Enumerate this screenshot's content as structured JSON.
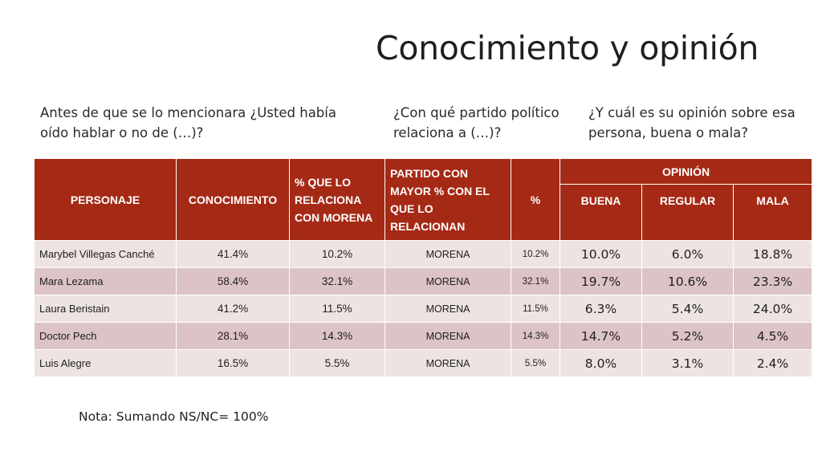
{
  "title": "Conocimiento y opinión",
  "questions": {
    "q1": "Antes de que se lo mencionara ¿Usted había oído hablar o no de (…)?",
    "q2": "¿Con qué partido político relaciona a (…)?",
    "q3": "¿Y cuál es su opinión sobre esa persona, buena o mala?"
  },
  "table": {
    "headers": {
      "personaje": "PERSONAJE",
      "conocimiento": "CONOCIMIENTO",
      "relaciona_morena": "% QUE LO RELACIONA CON MORENA",
      "partido": "PARTIDO CON MAYOR % CON EL QUE LO RELACIONAN",
      "pct": "%",
      "opinion": "OPINIÓN",
      "buena": "BUENA",
      "regular": "REGULAR",
      "mala": "MALA"
    },
    "rows": [
      {
        "personaje": "Marybel Villegas Canché",
        "conocimiento": "41.4%",
        "relaciona": "10.2%",
        "partido": "MORENA",
        "pct": "10.2%",
        "buena": "10.0%",
        "regular": "6.0%",
        "mala": "18.8%"
      },
      {
        "personaje": "Mara Lezama",
        "conocimiento": "58.4%",
        "relaciona": "32.1%",
        "partido": "MORENA",
        "pct": "32.1%",
        "buena": "19.7%",
        "regular": "10.6%",
        "mala": "23.3%"
      },
      {
        "personaje": "Laura Beristain",
        "conocimiento": "41.2%",
        "relaciona": "11.5%",
        "partido": "MORENA",
        "pct": "11.5%",
        "buena": "6.3%",
        "regular": "5.4%",
        "mala": "24.0%"
      },
      {
        "personaje": "Doctor Pech",
        "conocimiento": "28.1%",
        "relaciona": "14.3%",
        "partido": "MORENA",
        "pct": "14.3%",
        "buena": "14.7%",
        "regular": "5.2%",
        "mala": "4.5%"
      },
      {
        "personaje": "Luis Alegre",
        "conocimiento": "16.5%",
        "relaciona": "5.5%",
        "partido": "MORENA",
        "pct": "5.5%",
        "buena": "8.0%",
        "regular": "3.1%",
        "mala": "2.4%"
      }
    ]
  },
  "note": "Nota: Sumando NS/NC= 100%",
  "colors": {
    "header_bg": "#a52a16",
    "row_light": "#ede4e2",
    "row_dark": "#dcc3c5"
  }
}
